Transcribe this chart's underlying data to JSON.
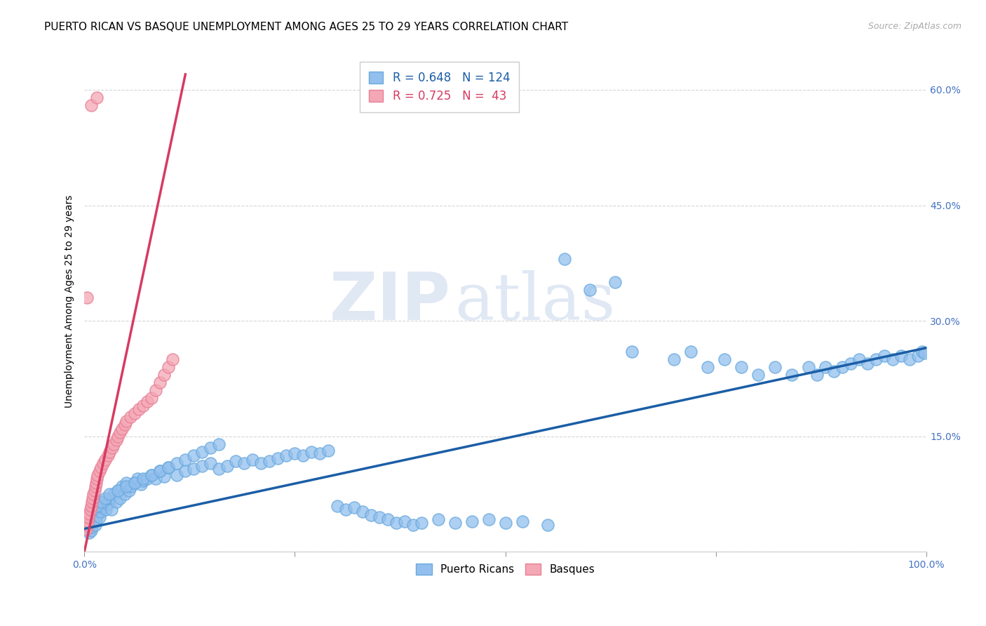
{
  "title": "PUERTO RICAN VS BASQUE UNEMPLOYMENT AMONG AGES 25 TO 29 YEARS CORRELATION CHART",
  "source": "Source: ZipAtlas.com",
  "ylabel": "Unemployment Among Ages 25 to 29 years",
  "xlim": [
    0.0,
    1.0
  ],
  "ylim": [
    0.0,
    0.65
  ],
  "blue_color": "#92BFED",
  "pink_color": "#F4A7B5",
  "blue_line_color": "#1B5EA6",
  "pink_line_color": "#D63B62",
  "legend_r_blue": "0.648",
  "legend_n_blue": "124",
  "legend_r_pink": "0.725",
  "legend_n_pink": " 43",
  "watermark_zip": "ZIP",
  "watermark_atlas": "atlas",
  "background_color": "#ffffff",
  "title_fontsize": 11,
  "axis_label_fontsize": 10,
  "tick_label_color": "#4472C4",
  "tick_label_fontsize": 10,
  "blue_scatter_x": [
    0.005,
    0.006,
    0.007,
    0.008,
    0.009,
    0.01,
    0.011,
    0.012,
    0.013,
    0.014,
    0.015,
    0.016,
    0.017,
    0.018,
    0.019,
    0.02,
    0.022,
    0.024,
    0.026,
    0.028,
    0.03,
    0.032,
    0.035,
    0.038,
    0.04,
    0.042,
    0.045,
    0.048,
    0.05,
    0.053,
    0.056,
    0.06,
    0.063,
    0.067,
    0.07,
    0.075,
    0.08,
    0.085,
    0.09,
    0.095,
    0.1,
    0.11,
    0.12,
    0.13,
    0.14,
    0.15,
    0.16,
    0.17,
    0.18,
    0.19,
    0.2,
    0.21,
    0.22,
    0.23,
    0.24,
    0.25,
    0.26,
    0.27,
    0.28,
    0.29,
    0.3,
    0.31,
    0.32,
    0.33,
    0.34,
    0.35,
    0.36,
    0.37,
    0.38,
    0.39,
    0.4,
    0.42,
    0.44,
    0.46,
    0.48,
    0.5,
    0.52,
    0.55,
    0.57,
    0.6,
    0.63,
    0.65,
    0.7,
    0.72,
    0.74,
    0.76,
    0.78,
    0.8,
    0.82,
    0.84,
    0.86,
    0.87,
    0.88,
    0.89,
    0.9,
    0.91,
    0.92,
    0.93,
    0.94,
    0.95,
    0.96,
    0.97,
    0.98,
    0.99,
    0.995,
    0.997,
    0.01,
    0.015,
    0.02,
    0.025,
    0.03,
    0.04,
    0.05,
    0.06,
    0.07,
    0.08,
    0.09,
    0.1,
    0.11,
    0.12,
    0.13,
    0.14,
    0.15,
    0.16
  ],
  "blue_scatter_y": [
    0.03,
    0.025,
    0.035,
    0.028,
    0.032,
    0.04,
    0.038,
    0.045,
    0.035,
    0.042,
    0.05,
    0.048,
    0.055,
    0.045,
    0.052,
    0.06,
    0.058,
    0.065,
    0.055,
    0.062,
    0.07,
    0.055,
    0.075,
    0.065,
    0.08,
    0.07,
    0.085,
    0.075,
    0.09,
    0.08,
    0.085,
    0.09,
    0.095,
    0.088,
    0.092,
    0.095,
    0.1,
    0.095,
    0.105,
    0.098,
    0.11,
    0.1,
    0.105,
    0.108,
    0.112,
    0.115,
    0.108,
    0.112,
    0.118,
    0.115,
    0.12,
    0.115,
    0.118,
    0.122,
    0.125,
    0.128,
    0.125,
    0.13,
    0.128,
    0.132,
    0.06,
    0.055,
    0.058,
    0.052,
    0.048,
    0.045,
    0.042,
    0.038,
    0.04,
    0.035,
    0.038,
    0.042,
    0.038,
    0.04,
    0.042,
    0.038,
    0.04,
    0.035,
    0.38,
    0.34,
    0.35,
    0.26,
    0.25,
    0.26,
    0.24,
    0.25,
    0.24,
    0.23,
    0.24,
    0.23,
    0.24,
    0.23,
    0.24,
    0.235,
    0.24,
    0.245,
    0.25,
    0.245,
    0.25,
    0.255,
    0.25,
    0.255,
    0.25,
    0.255,
    0.26,
    0.258,
    0.055,
    0.06,
    0.065,
    0.07,
    0.075,
    0.08,
    0.085,
    0.09,
    0.095,
    0.1,
    0.105,
    0.11,
    0.115,
    0.12,
    0.125,
    0.13,
    0.135,
    0.14
  ],
  "pink_scatter_x": [
    0.002,
    0.003,
    0.004,
    0.005,
    0.006,
    0.007,
    0.008,
    0.009,
    0.01,
    0.011,
    0.012,
    0.013,
    0.014,
    0.015,
    0.016,
    0.018,
    0.02,
    0.022,
    0.025,
    0.028,
    0.03,
    0.033,
    0.035,
    0.038,
    0.04,
    0.042,
    0.045,
    0.048,
    0.05,
    0.055,
    0.06,
    0.065,
    0.07,
    0.075,
    0.08,
    0.085,
    0.09,
    0.095,
    0.1,
    0.105,
    0.008,
    0.015,
    0.003
  ],
  "pink_scatter_y": [
    0.03,
    0.035,
    0.04,
    0.045,
    0.05,
    0.055,
    0.06,
    0.065,
    0.07,
    0.075,
    0.08,
    0.085,
    0.09,
    0.095,
    0.1,
    0.105,
    0.11,
    0.115,
    0.12,
    0.125,
    0.13,
    0.135,
    0.14,
    0.145,
    0.15,
    0.155,
    0.16,
    0.165,
    0.17,
    0.175,
    0.18,
    0.185,
    0.19,
    0.195,
    0.2,
    0.21,
    0.22,
    0.23,
    0.24,
    0.25,
    0.58,
    0.59,
    0.33
  ],
  "blue_line_x": [
    0.0,
    1.0
  ],
  "blue_line_y": [
    0.03,
    0.265
  ],
  "pink_line_x": [
    0.0,
    0.12
  ],
  "pink_line_y": [
    0.0,
    0.62
  ]
}
